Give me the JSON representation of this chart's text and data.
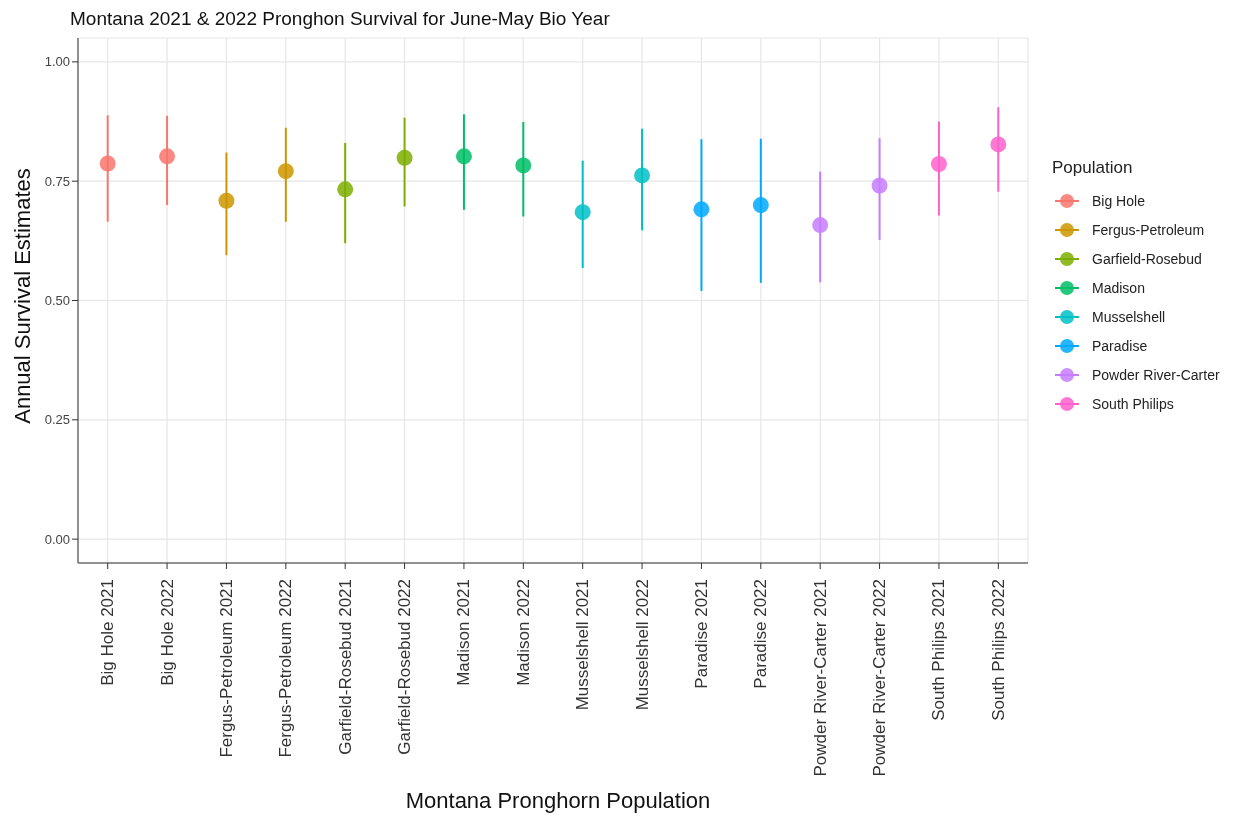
{
  "chart_data": {
    "type": "scatter",
    "title": "Montana 2021 & 2022 Pronghon Survival for June-May Bio Year",
    "xlabel": "Montana Pronghorn Population",
    "ylabel": "Annual Survival Estimates",
    "legend_title": "Population",
    "legend": "right",
    "grid": true,
    "marker": "circle",
    "ylim": [
      -0.05,
      1.05
    ],
    "yticks": [
      {
        "value": 0,
        "label": "0.00"
      },
      {
        "value": 0.25,
        "label": "0.25"
      },
      {
        "value": 0.5,
        "label": "0.50"
      },
      {
        "value": 0.75,
        "label": "0.75"
      },
      {
        "value": 1,
        "label": "1.00"
      }
    ],
    "categories": [
      "Big Hole 2021",
      "Big Hole 2022",
      "Fergus-Petroleum 2021",
      "Fergus-Petroleum 2022",
      "Garfield-Rosebud 2021",
      "Garfield-Rosebud 2022",
      "Madison 2021",
      "Madison 2022",
      "Musselshell 2021",
      "Musselshell 2022",
      "Paradise 2021",
      "Paradise 2022",
      "Powder River-Carter 2021",
      "Powder River-Carter 2022",
      "South Philips 2021",
      "South Philips 2022"
    ],
    "series": [
      {
        "name": "Big Hole",
        "color": "#f8766d",
        "values": [
          0.787,
          0.802,
          null,
          null,
          null,
          null,
          null,
          null,
          null,
          null,
          null,
          null,
          null,
          null,
          null,
          null
        ],
        "errors": [
          [
            0.665,
            0.888
          ],
          [
            0.7,
            0.887
          ],
          null,
          null,
          null,
          null,
          null,
          null,
          null,
          null,
          null,
          null,
          null,
          null,
          null,
          null
        ]
      },
      {
        "name": "Fergus-Petroleum",
        "color": "#cd9600",
        "values": [
          null,
          null,
          0.709,
          0.771,
          null,
          null,
          null,
          null,
          null,
          null,
          null,
          null,
          null,
          null,
          null,
          null
        ],
        "errors": [
          null,
          null,
          [
            0.595,
            0.81
          ],
          [
            0.665,
            0.862
          ],
          null,
          null,
          null,
          null,
          null,
          null,
          null,
          null,
          null,
          null,
          null,
          null
        ]
      },
      {
        "name": "Garfield-Rosebud",
        "color": "#7cae00",
        "values": [
          null,
          null,
          null,
          null,
          0.733,
          0.799,
          null,
          null,
          null,
          null,
          null,
          null,
          null,
          null,
          null,
          null
        ],
        "errors": [
          null,
          null,
          null,
          null,
          [
            0.62,
            0.83
          ],
          [
            0.697,
            0.883
          ],
          null,
          null,
          null,
          null,
          null,
          null,
          null,
          null,
          null,
          null
        ]
      },
      {
        "name": "Madison",
        "color": "#00be67",
        "values": [
          null,
          null,
          null,
          null,
          null,
          null,
          0.802,
          0.783,
          null,
          null,
          null,
          null,
          null,
          null,
          null,
          null
        ],
        "errors": [
          null,
          null,
          null,
          null,
          null,
          null,
          [
            0.69,
            0.89
          ],
          [
            0.676,
            0.874
          ],
          null,
          null,
          null,
          null,
          null,
          null,
          null,
          null
        ]
      },
      {
        "name": "Musselshell",
        "color": "#00bfc4",
        "values": [
          null,
          null,
          null,
          null,
          null,
          null,
          null,
          null,
          0.685,
          0.762,
          null,
          null,
          null,
          null,
          null,
          null
        ],
        "errors": [
          null,
          null,
          null,
          null,
          null,
          null,
          null,
          null,
          [
            0.568,
            0.793
          ],
          [
            0.647,
            0.86
          ],
          null,
          null,
          null,
          null,
          null,
          null
        ]
      },
      {
        "name": "Paradise",
        "color": "#00a9ff",
        "values": [
          null,
          null,
          null,
          null,
          null,
          null,
          null,
          null,
          null,
          null,
          0.691,
          0.7,
          null,
          null,
          null,
          null
        ],
        "errors": [
          null,
          null,
          null,
          null,
          null,
          null,
          null,
          null,
          null,
          null,
          [
            0.52,
            0.838
          ],
          [
            0.537,
            0.839
          ],
          null,
          null,
          null,
          null
        ]
      },
      {
        "name": "Powder River-Carter",
        "color": "#c77cff",
        "values": [
          null,
          null,
          null,
          null,
          null,
          null,
          null,
          null,
          null,
          null,
          null,
          null,
          0.658,
          0.741,
          null,
          null
        ],
        "errors": [
          null,
          null,
          null,
          null,
          null,
          null,
          null,
          null,
          null,
          null,
          null,
          null,
          [
            0.538,
            0.77
          ],
          [
            0.627,
            0.84
          ],
          null,
          null
        ]
      },
      {
        "name": "South Philips",
        "color": "#ff61cc",
        "values": [
          null,
          null,
          null,
          null,
          null,
          null,
          null,
          null,
          null,
          null,
          null,
          null,
          null,
          null,
          0.786,
          0.827
        ],
        "errors": [
          null,
          null,
          null,
          null,
          null,
          null,
          null,
          null,
          null,
          null,
          null,
          null,
          null,
          null,
          [
            0.678,
            0.875
          ],
          [
            0.728,
            0.905
          ]
        ]
      }
    ]
  }
}
